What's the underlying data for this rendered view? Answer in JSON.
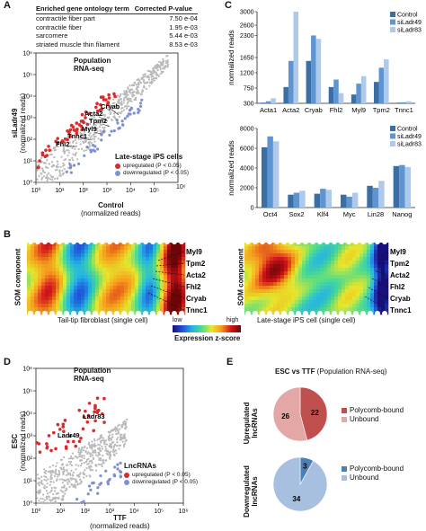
{
  "panels": {
    "A": "A",
    "B": "B",
    "C": "C",
    "D": "D",
    "E": "E"
  },
  "go_table": {
    "headers": [
      "Enriched gene ontology term",
      "Corrected P-value"
    ],
    "rows": [
      [
        "contractile fiber part",
        "7.50 e-04"
      ],
      [
        "contractile fiber",
        "1.95 e-03"
      ],
      [
        "sarcomere",
        "5.44 e-03"
      ],
      [
        "striated muscle thin filament",
        "8.53 e-03"
      ]
    ]
  },
  "panel_a": {
    "title_line1": "Population",
    "title_line2": "RNA-seq",
    "ylabel_line1": "siLadr49",
    "ylabel_line2": "(normalized reads)",
    "xlabel_line1": "Control",
    "xlabel_line2": "(normalized reads)",
    "legend_title": "Late-stage iPS cells",
    "legend_up": "upregulated (P < 0.05)",
    "legend_down": "downregulated (P < 0.05)",
    "gene_labels": [
      "Cryab",
      "Acta2",
      "Tpm2",
      "Myl9",
      "Tnnc1",
      "Fhl2"
    ],
    "corner_label": "10⁶"
  },
  "panel_b": {
    "left_ylabel": "SOM component",
    "right_ylabel": "SOM component",
    "left_caption": "Tail-tip fibroblast (single cell)",
    "right_caption": "Late-stage iPS cell (single cell)",
    "colorbar_low": "low",
    "colorbar_high": "high",
    "colorbar_label": "Expression z-score",
    "gene_labels": [
      "Myl9",
      "Tpm2",
      "Acta2",
      "Fhl2",
      "Cryab",
      "Tnnc1"
    ]
  },
  "panel_d": {
    "title_line1": "Population",
    "title_line2": "RNA-seq",
    "ylabel_line1": "ESC",
    "ylabel_line2": "(normalized reads)",
    "xlabel_line1": "TTF",
    "xlabel_line2": "(normalized reads)",
    "legend_title": "LncRNAs",
    "legend_up": "upregulated (P < 0.05)",
    "legend_down": "downregulated (P < 0.05)",
    "gene_labels": [
      "Ladr83",
      "Ladr49"
    ]
  },
  "panel_e": {
    "title_bold": "ESC vs TTF",
    "title_rest": " (Population RNA-seq)",
    "pie1_label_line1": "Upregulated",
    "pie1_label_line2": "lncRNAs",
    "pie2_label_line1": "Downregulated",
    "pie2_label_line2": "lncRNAs",
    "pie1_legend": [
      "Polycomb-bound",
      "Unbound"
    ],
    "pie2_legend": [
      "Polycomb-bound",
      "Unbound"
    ]
  },
  "colors": {
    "up_red": "#d92b2b",
    "down_blue": "#7f8fd0",
    "grey_points": "#b8b8b8",
    "control": "#3a6ea5",
    "siLadr49": "#5e95d1",
    "siLadr83": "#aec9ea",
    "pie1_bound": "#c0504d",
    "pie1_unbound": "#e3a7a5",
    "pie2_bound": "#4a7fb8",
    "pie2_unbound": "#a7c0e0"
  },
  "chart_data": [
    {
      "type": "bar",
      "panel": "C-top",
      "ylabel": "normalized reads",
      "ylim": [
        300,
        3000
      ],
      "yticks": [
        300,
        750,
        1200,
        1650,
        2300,
        2600,
        3000
      ],
      "ytick_labels": [
        "300",
        "750",
        "1200",
        "1650",
        "2300",
        "2600",
        "3000"
      ],
      "categories": [
        "Acta1",
        "Acta2",
        "Cryab",
        "Fhl2",
        "Myl9",
        "Tpm2",
        "Tnnc1"
      ],
      "series": [
        {
          "name": "Control",
          "values": [
            320,
            780,
            1550,
            780,
            560,
            930,
            320
          ]
        },
        {
          "name": "siLadr49",
          "values": [
            360,
            1550,
            2300,
            1000,
            880,
            1350,
            330
          ]
        },
        {
          "name": "siLadr83",
          "values": [
            450,
            3000,
            2200,
            600,
            1100,
            1600,
            360
          ]
        }
      ]
    },
    {
      "type": "bar",
      "panel": "C-bottom",
      "ylabel": "normalized reads",
      "ylim": [
        0,
        8000
      ],
      "yticks": [
        0,
        2000,
        4000,
        6000,
        8000
      ],
      "ytick_labels": [
        "0",
        "2000",
        "4000",
        "6000",
        "8000"
      ],
      "categories": [
        "Oct4",
        "Sox2",
        "Klf4",
        "Myc",
        "Lin28",
        "Nanog"
      ],
      "series": [
        {
          "name": "Control",
          "values": [
            6100,
            1300,
            1400,
            1300,
            2200,
            4200
          ]
        },
        {
          "name": "siLadr49",
          "values": [
            7200,
            1500,
            1900,
            1100,
            2000,
            4300
          ]
        },
        {
          "name": "siLadr83",
          "values": [
            6700,
            1700,
            1800,
            1500,
            2700,
            4100
          ]
        }
      ]
    },
    {
      "type": "pie",
      "panel": "E-top",
      "labels": [
        "Polycomb-bound",
        "Unbound"
      ],
      "values": [
        22,
        26
      ]
    },
    {
      "type": "pie",
      "panel": "E-bottom",
      "labels": [
        "Polycomb-bound",
        "Unbound"
      ],
      "values": [
        3,
        34
      ]
    },
    {
      "type": "scatter",
      "panel": "A",
      "xlim": [
        1,
        1000000
      ],
      "ylim": [
        1,
        1000000
      ],
      "xticks": [
        "10⁰",
        "10¹",
        "10²",
        "10³",
        "10⁴",
        "10⁵"
      ],
      "yticks": [
        "10⁰",
        "10¹",
        "10²",
        "10³",
        "10⁴",
        "10⁵",
        "10⁶"
      ]
    },
    {
      "type": "scatter",
      "panel": "D",
      "xlim": [
        1,
        1000000
      ],
      "ylim": [
        1,
        1000000
      ],
      "xticks": [
        "10⁰",
        "10¹",
        "10²",
        "10³",
        "10⁴",
        "10⁵",
        "10⁶"
      ],
      "yticks": [
        "10⁰",
        "10¹",
        "10²",
        "10³",
        "10⁴",
        "10⁵",
        "10⁶"
      ]
    }
  ]
}
